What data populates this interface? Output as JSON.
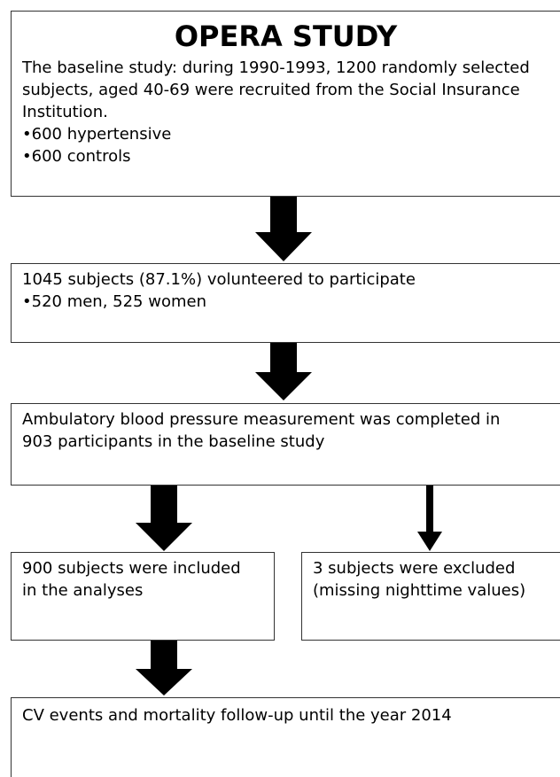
{
  "nodes": [
    {
      "title": "OPERA STUDY",
      "lines": [
        "The baseline study: during 1990-1993, 1200 randomly selected",
        "subjects, aged 40-69 were recruited from the Social Insurance",
        "Institution.",
        "•600 hypertensive",
        "•600 controls"
      ]
    },
    {
      "lines": [
        "1045 subjects (87.1%) volunteered to participate",
        "•520 men, 525 women"
      ]
    },
    {
      "lines": [
        "Ambulatory blood pressure measurement was completed in",
        "903 participants in the baseline study"
      ]
    },
    {
      "lines": [
        "900 subjects were included",
        "in the analyses"
      ]
    },
    {
      "lines": [
        "3 subjects were excluded",
        "(missing nighttime values)"
      ]
    },
    {
      "lines": [
        "CV events and mortality follow-up until the year 2014"
      ]
    }
  ]
}
